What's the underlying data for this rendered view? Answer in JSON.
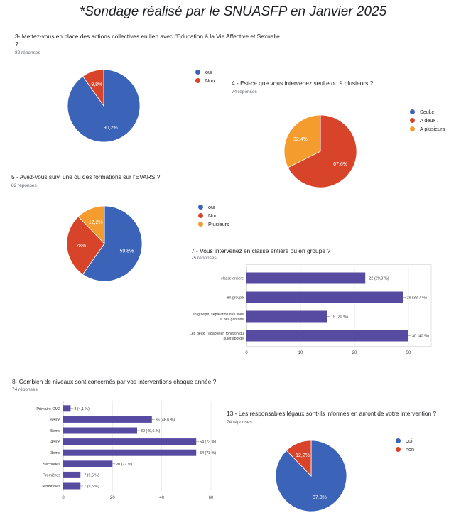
{
  "title": "*Sondage réalisé par le SNUASFP en Janvier 2025",
  "colors": {
    "blue": "#3b64b8",
    "red": "#d7442a",
    "orange": "#f59c2e",
    "purple": "#574ba1"
  },
  "q3": {
    "question_l1": "3- Mettez-vous en place des actions collectives en lien avec l'Education à la Vie Affective et Sexuelle",
    "question_l2": "?",
    "responses": "82 réponses"
  },
  "q4": {
    "question": "4 - Est-ce que vous intervenez seul.e ou à plusieurs ?",
    "responses": "74 réponses"
  },
  "q5": {
    "question": "5 - Avez-vous suivi une ou des formations sur l'EVARS ?",
    "responses": "82 réponses"
  },
  "q7": {
    "question": "7 - Vous intervenez en  classe entière ou en groupe ?",
    "responses": "75 réponses"
  },
  "q8": {
    "question": "8- Combien de niveaux sont concernés par vos interventions chaque année ?",
    "responses": "74 réponses"
  },
  "q13": {
    "question": "13 -  Les responsables légaux sont-ils informés en amont de votre intervention ?",
    "responses": "74 réponses"
  },
  "chart_data": [
    {
      "id": "q3",
      "type": "pie",
      "slices": [
        {
          "label": "oui",
          "value": 90.2,
          "display": "90,2%",
          "color": "#3b64b8"
        },
        {
          "label": "Non",
          "value": 9.8,
          "display": "9,8%",
          "color": "#d7442a"
        }
      ]
    },
    {
      "id": "q4",
      "type": "pie",
      "slices": [
        {
          "label": "Seul.e",
          "value": 0,
          "display": "",
          "color": "#3b64b8"
        },
        {
          "label": "A deux .",
          "value": 67.6,
          "display": "67,6%",
          "color": "#d7442a"
        },
        {
          "label": "A plusieurs",
          "value": 32.4,
          "display": "32,4%",
          "color": "#f59c2e"
        }
      ]
    },
    {
      "id": "q5",
      "type": "pie",
      "slices": [
        {
          "label": "oui",
          "value": 59.8,
          "display": "59,8%",
          "color": "#3b64b8"
        },
        {
          "label": "Non",
          "value": 28,
          "display": "28%",
          "color": "#d7442a"
        },
        {
          "label": "Plusieurs",
          "value": 12.2,
          "display": "12,2%",
          "color": "#f59c2e"
        }
      ]
    },
    {
      "id": "q7",
      "type": "bar",
      "orientation": "horizontal",
      "xlim": [
        0,
        30
      ],
      "xticks": [
        "0",
        "10",
        "20",
        "30"
      ],
      "categories": [
        [
          "classe entière"
        ],
        [
          "en groupe"
        ],
        [
          "en groupe, séparation des filles",
          "et des garçons"
        ],
        [
          "Les deux, j'adapte en fonction du",
          "sujet abordé"
        ]
      ],
      "values": [
        22,
        29,
        15,
        30
      ],
      "value_labels": [
        "22 (29,3 %)",
        "29 (38,7 %)",
        "15 (20 %)",
        "30 (40 %)"
      ]
    },
    {
      "id": "q8",
      "type": "bar",
      "orientation": "horizontal",
      "xlim": [
        0,
        60
      ],
      "xticks": [
        "0",
        "20",
        "40",
        "60"
      ],
      "categories": [
        [
          "Primaire CM2"
        ],
        [
          "6eme"
        ],
        [
          "5eme"
        ],
        [
          "4eme"
        ],
        [
          "3eme"
        ],
        [
          "Secondes"
        ],
        [
          "Premières"
        ],
        [
          "Terminales"
        ]
      ],
      "values": [
        3,
        36,
        30,
        54,
        54,
        20,
        7,
        7
      ],
      "value_labels": [
        "3 (4,1 %)",
        "36 (48,6 %)",
        "30 (40,5 %)",
        "54 (73 %)",
        "54 (73 %)",
        "20 (27 %)",
        "7 (9,5 %)",
        "7 (9,5 %)"
      ]
    },
    {
      "id": "q13",
      "type": "pie",
      "slices": [
        {
          "label": "oui",
          "value": 87.8,
          "display": "87,8%",
          "color": "#3b64b8"
        },
        {
          "label": "non",
          "value": 12.2,
          "display": "12,2%",
          "color": "#d7442a"
        }
      ]
    }
  ]
}
